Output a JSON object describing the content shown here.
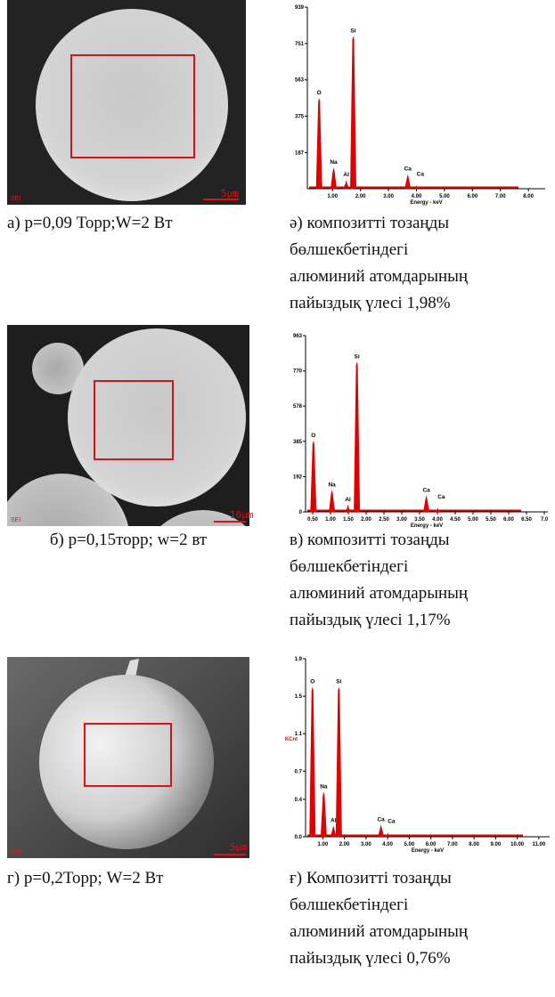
{
  "panels": [
    {
      "sem": {
        "detector": "SEI",
        "scale": "5µm"
      },
      "spectrum": {
        "ylim": [
          0,
          939
        ],
        "yticks": [
          187,
          375,
          563,
          751,
          939
        ],
        "xlim": [
          0.1,
          8.6
        ],
        "xticks": [
          {
            "value": 1,
            "label": "1.00"
          },
          {
            "value": 2,
            "label": "2.00"
          },
          {
            "value": 3,
            "label": "3.00"
          },
          {
            "value": 4,
            "label": "4.00"
          },
          {
            "value": 5,
            "label": "5.00"
          },
          {
            "value": 6,
            "label": "6.00"
          },
          {
            "value": 7,
            "label": "7.00"
          },
          {
            "value": 8,
            "label": "8.00"
          }
        ],
        "xlabel": "Energy - keV",
        "peaks": [
          {
            "label": "O",
            "x": 0.52,
            "y": 470
          },
          {
            "label": "Na",
            "x": 1.04,
            "y": 110
          },
          {
            "label": "Al",
            "x": 1.49,
            "y": 45
          },
          {
            "label": "Si",
            "x": 1.74,
            "y": 790
          },
          {
            "label": "Ca",
            "x": 3.69,
            "y": 75
          },
          {
            "label": "Ca",
            "x": 4.01,
            "y": 20
          }
        ]
      },
      "caption_left": "а) р=0,09 Торр;W=2 Вт",
      "caption_right": [
        "ә) композитті тозаңды",
        "бөлшекбетіндегі",
        "алюминий атомдарының",
        "пайыздық үлесі 1,98%"
      ]
    },
    {
      "sem": {
        "detector": "SEI",
        "scale": "10µm"
      },
      "spectrum": {
        "ylim": [
          0,
          963
        ],
        "yticks": [
          0,
          192,
          385,
          578,
          770,
          963
        ],
        "xlim": [
          0.3,
          7.1
        ],
        "xticks": [
          {
            "value": 0.5,
            "label": "0.50"
          },
          {
            "value": 1,
            "label": "1.00"
          },
          {
            "value": 1.5,
            "label": "1.50"
          },
          {
            "value": 2,
            "label": "2.00"
          },
          {
            "value": 2.5,
            "label": "2.50"
          },
          {
            "value": 3,
            "label": "3.00"
          },
          {
            "value": 3.5,
            "label": "3.50"
          },
          {
            "value": 4,
            "label": "4.00"
          },
          {
            "value": 4.5,
            "label": "4.50"
          },
          {
            "value": 5,
            "label": "5.00"
          },
          {
            "value": 5.5,
            "label": "5.50"
          },
          {
            "value": 6,
            "label": "6.00"
          },
          {
            "value": 6.5,
            "label": "6.50"
          },
          {
            "value": 7,
            "label": "7.0"
          }
        ],
        "xlabel": "Energy - keV",
        "peaks": [
          {
            "label": "O",
            "x": 0.52,
            "y": 390
          },
          {
            "label": "Na",
            "x": 1.04,
            "y": 120
          },
          {
            "label": "Al",
            "x": 1.49,
            "y": 40
          },
          {
            "label": "Si",
            "x": 1.74,
            "y": 820
          },
          {
            "label": "Ca",
            "x": 3.69,
            "y": 90
          },
          {
            "label": "Ca",
            "x": 4.01,
            "y": 25
          }
        ]
      },
      "caption_left": "б) р=0,15торр; w=2 вт",
      "caption_right": [
        "в) композитті тозаңды",
        "бөлшекбетіндегі",
        "алюминий атомдарының",
        "пайыздық үлесі 1,17%"
      ]
    },
    {
      "sem": {
        "detector": "SEI",
        "scale": "5µm"
      },
      "spectrum": {
        "ylim": [
          0,
          1.9
        ],
        "yticks": [
          {
            "value": 0,
            "label": "0.0"
          },
          0.4,
          0.7,
          1.1,
          1.5,
          1.9
        ],
        "ylabel": "KCnt",
        "xlim": [
          0.2,
          11.5
        ],
        "xticks": [
          {
            "value": 1,
            "label": "1.00"
          },
          {
            "value": 2,
            "label": "2.00"
          },
          {
            "value": 3,
            "label": "3.00"
          },
          {
            "value": 4,
            "label": "4.00"
          },
          {
            "value": 5,
            "label": "5.00"
          },
          {
            "value": 6,
            "label": "6.00"
          },
          {
            "value": 7,
            "label": "7.00"
          },
          {
            "value": 8,
            "label": "8.00"
          },
          {
            "value": 9,
            "label": "9.00"
          },
          {
            "value": 10,
            "label": "10.00"
          },
          {
            "value": 11,
            "label": "11.00"
          }
        ],
        "xlabel": "Energy - keV",
        "peaks": [
          {
            "label": "O",
            "x": 0.52,
            "y": 1.6
          },
          {
            "label": "Na",
            "x": 1.04,
            "y": 0.48
          },
          {
            "label": "Al",
            "x": 1.49,
            "y": 0.12
          },
          {
            "label": "Si",
            "x": 1.74,
            "y": 1.6
          },
          {
            "label": "Ca",
            "x": 3.69,
            "y": 0.13
          },
          {
            "label": "Ca",
            "x": 4.01,
            "y": 0.05
          }
        ]
      },
      "caption_left": "г) р=0,2Торр; W=2 Вт",
      "caption_right": [
        "ғ) Композитті тозаңды",
        "бөлшекбетіндегі",
        "алюминий атомдарының",
        "пайыздық үлесі 0,76%"
      ]
    }
  ]
}
